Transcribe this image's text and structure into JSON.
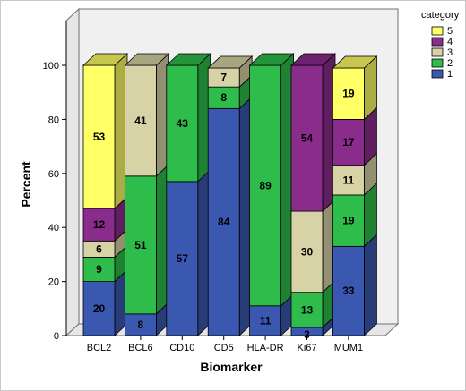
{
  "chart_data": {
    "type": "bar",
    "stacked": true,
    "three_d": true,
    "xlabel": "Biomarker",
    "ylabel": "Percent",
    "ylim": [
      0,
      100
    ],
    "yticks": [
      0,
      20,
      40,
      60,
      80,
      100
    ],
    "grid": false,
    "legend_title": "category",
    "legend_placement": "top-right",
    "categories": [
      "BCL2",
      "BCL6",
      "CD10",
      "CD5",
      "HLA-DR",
      "Ki67",
      "MUM1"
    ],
    "series": [
      {
        "name": "1",
        "color": "#3b58b0",
        "values": [
          20,
          8,
          57,
          84,
          11,
          3,
          33
        ]
      },
      {
        "name": "2",
        "color": "#2ebd4a",
        "values": [
          9,
          51,
          43,
          8,
          89,
          13,
          19
        ]
      },
      {
        "name": "3",
        "color": "#d8d3a6",
        "values": [
          6,
          41,
          0,
          7,
          0,
          30,
          11
        ]
      },
      {
        "name": "4",
        "color": "#8a2c8c",
        "values": [
          12,
          0,
          0,
          0,
          0,
          54,
          17
        ]
      },
      {
        "name": "5",
        "color": "#ffff66",
        "values": [
          53,
          0,
          0,
          0,
          0,
          0,
          19
        ]
      }
    ],
    "data_labels": [
      [
        "20",
        "9",
        "6",
        "12",
        "53"
      ],
      [
        "8",
        "51",
        "41",
        "",
        ""
      ],
      [
        "57",
        "43",
        "",
        "",
        ""
      ],
      [
        "84",
        "8",
        "7",
        "",
        ""
      ],
      [
        "11",
        "89",
        "",
        "",
        ""
      ],
      [
        "3",
        "13",
        "30",
        "54",
        ""
      ],
      [
        "33",
        "19",
        "11",
        "17",
        "19"
      ]
    ]
  }
}
